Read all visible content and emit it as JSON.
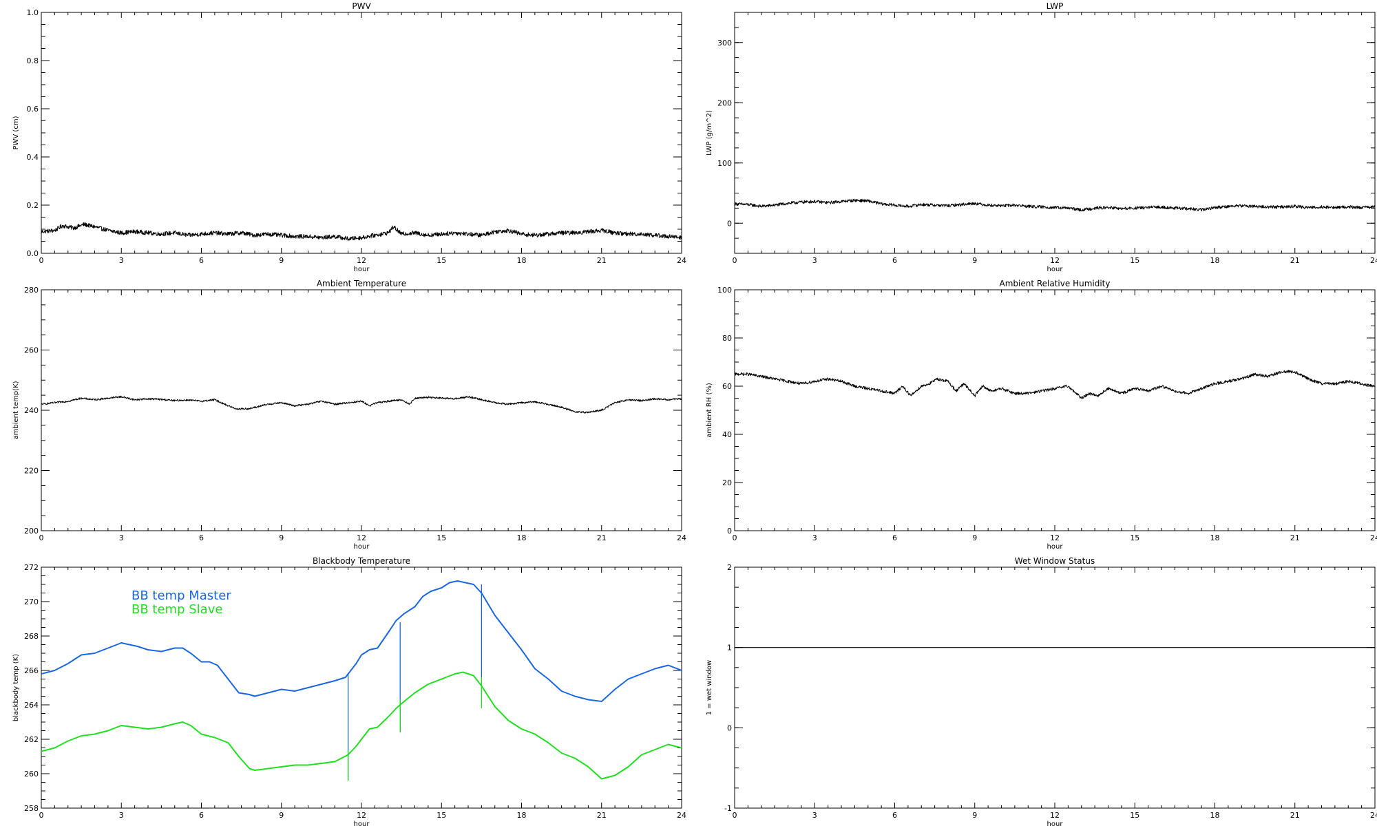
{
  "chart_data": [
    {
      "type": "line",
      "title": "PWV",
      "xlabel": "hour",
      "ylabel": "PWV (cm)",
      "xlim": [
        0,
        24
      ],
      "ylim": [
        0.0,
        1.0
      ],
      "xticks": [
        "0",
        "3",
        "6",
        "9",
        "12",
        "15",
        "18",
        "21",
        "24"
      ],
      "yticks": [
        "0.0",
        "0.2",
        "0.4",
        "0.6",
        "0.8",
        "1.0"
      ],
      "grid": false,
      "series": [
        {
          "color": "#000000",
          "style": "noisy",
          "noise": 0.009,
          "x": [
            0,
            0.5,
            0.8,
            1.2,
            1.6,
            2.0,
            2.5,
            3.0,
            3.5,
            4.0,
            4.5,
            5.0,
            5.5,
            6.0,
            6.5,
            7.0,
            7.5,
            8.0,
            8.5,
            9.0,
            9.5,
            10.0,
            10.5,
            11.0,
            11.5,
            12.0,
            12.5,
            13.0,
            13.2,
            13.5,
            14.0,
            14.5,
            15.0,
            15.5,
            16.0,
            16.5,
            17.0,
            17.5,
            18.0,
            18.5,
            19.0,
            19.5,
            20.0,
            20.5,
            21.0,
            21.5,
            22.0,
            22.5,
            23.0,
            23.5,
            24.0
          ],
          "y": [
            0.09,
            0.095,
            0.115,
            0.105,
            0.12,
            0.11,
            0.095,
            0.085,
            0.09,
            0.085,
            0.08,
            0.085,
            0.075,
            0.08,
            0.085,
            0.08,
            0.085,
            0.075,
            0.08,
            0.075,
            0.07,
            0.07,
            0.065,
            0.07,
            0.06,
            0.065,
            0.075,
            0.085,
            0.11,
            0.08,
            0.085,
            0.075,
            0.08,
            0.085,
            0.08,
            0.075,
            0.09,
            0.095,
            0.08,
            0.075,
            0.08,
            0.085,
            0.085,
            0.09,
            0.095,
            0.085,
            0.08,
            0.08,
            0.075,
            0.07,
            0.065
          ]
        }
      ]
    },
    {
      "type": "line",
      "title": "LWP",
      "xlabel": "hour",
      "ylabel": "LWP (g/m^2)",
      "xlim": [
        0,
        24
      ],
      "ylim": [
        -50,
        350
      ],
      "xticks": [
        "0",
        "3",
        "6",
        "9",
        "12",
        "15",
        "18",
        "21",
        "24"
      ],
      "yticks": [
        "0",
        "100",
        "200",
        "300"
      ],
      "grid": false,
      "series": [
        {
          "color": "#000000",
          "style": "noisy",
          "noise": 2.5,
          "x": [
            0,
            0.5,
            1.0,
            1.5,
            2.0,
            2.5,
            3.0,
            3.5,
            4.0,
            4.5,
            5.0,
            5.5,
            6.0,
            6.5,
            7.0,
            7.5,
            8.0,
            8.5,
            9.0,
            9.5,
            10.0,
            10.5,
            11.0,
            11.5,
            12.0,
            12.5,
            13.0,
            13.5,
            14.0,
            14.5,
            15.0,
            15.5,
            16.0,
            16.5,
            17.0,
            17.5,
            18.0,
            18.5,
            19.0,
            19.5,
            20.0,
            20.5,
            21.0,
            21.5,
            22.0,
            22.5,
            23.0,
            23.5,
            24.0
          ],
          "y": [
            32,
            31,
            28,
            30,
            33,
            35,
            36,
            34,
            36,
            38,
            37,
            32,
            30,
            28,
            31,
            30,
            29,
            31,
            33,
            30,
            29,
            30,
            28,
            27,
            26,
            25,
            22,
            25,
            26,
            24,
            25,
            26,
            27,
            25,
            24,
            22,
            26,
            28,
            29,
            28,
            27,
            27,
            28,
            26,
            27,
            26,
            27,
            26,
            27
          ]
        }
      ]
    },
    {
      "type": "line",
      "title": "Ambient Temperature",
      "xlabel": "hour",
      "ylabel": "ambient temp(K)",
      "xlim": [
        0,
        24
      ],
      "ylim": [
        200,
        280
      ],
      "xticks": [
        "0",
        "3",
        "6",
        "9",
        "12",
        "15",
        "18",
        "21",
        "24"
      ],
      "yticks": [
        "200",
        "220",
        "240",
        "260",
        "280"
      ],
      "grid": false,
      "series": [
        {
          "color": "#000000",
          "style": "noisy",
          "noise": 0.3,
          "x": [
            0,
            0.5,
            1.0,
            1.5,
            2.0,
            2.5,
            3.0,
            3.5,
            4.0,
            4.5,
            5.0,
            5.5,
            6.0,
            6.5,
            7.0,
            7.3,
            7.8,
            8.5,
            9.0,
            9.5,
            10.0,
            10.5,
            11.0,
            11.5,
            12.0,
            12.3,
            12.6,
            13.0,
            13.5,
            13.8,
            14.0,
            14.5,
            15.0,
            15.5,
            16.0,
            16.5,
            17.0,
            17.5,
            18.0,
            18.5,
            19.0,
            19.5,
            20.0,
            20.5,
            21.0,
            21.5,
            22.0,
            22.5,
            23.0,
            23.5,
            24.0
          ],
          "y": [
            242,
            242.5,
            243,
            244,
            243.5,
            244,
            244.5,
            243.5,
            243.8,
            243.6,
            243.2,
            243.4,
            243,
            243.5,
            241.5,
            240.5,
            240.5,
            242,
            242.5,
            241.5,
            242,
            243,
            242,
            242.5,
            243,
            241.5,
            242.5,
            243,
            243.5,
            242,
            244,
            244.3,
            244,
            243.8,
            244.5,
            243.5,
            242.5,
            242,
            242.5,
            242.8,
            242,
            241,
            239.5,
            239.3,
            240,
            242.5,
            243.5,
            243.2,
            243.8,
            243.5,
            243.8
          ]
        }
      ]
    },
    {
      "type": "line",
      "title": "Ambient Relative Humidity",
      "xlabel": "hour",
      "ylabel": "ambient RH (%)",
      "xlim": [
        0,
        24
      ],
      "ylim": [
        0,
        100
      ],
      "xticks": [
        "0",
        "3",
        "6",
        "9",
        "12",
        "15",
        "18",
        "21",
        "24"
      ],
      "yticks": [
        "0",
        "20",
        "40",
        "60",
        "80",
        "100"
      ],
      "grid": false,
      "series": [
        {
          "color": "#000000",
          "style": "noisy",
          "noise": 0.6,
          "x": [
            0,
            0.5,
            1.0,
            1.5,
            2.0,
            2.5,
            3.0,
            3.5,
            4.0,
            4.5,
            5.0,
            5.5,
            6.0,
            6.3,
            6.6,
            7.0,
            7.3,
            7.6,
            8.0,
            8.3,
            8.6,
            9.0,
            9.3,
            9.6,
            10.0,
            10.5,
            11.0,
            11.5,
            12.0,
            12.5,
            13.0,
            13.3,
            13.6,
            14.0,
            14.5,
            15.0,
            15.5,
            16.0,
            16.5,
            17.0,
            17.5,
            18.0,
            18.5,
            19.0,
            19.5,
            20.0,
            20.5,
            21.0,
            21.5,
            22.0,
            22.5,
            23.0,
            23.5,
            24.0
          ],
          "y": [
            65,
            65,
            64,
            63,
            62,
            61,
            62,
            63,
            62,
            60,
            59,
            58,
            57,
            60,
            56,
            60,
            61,
            63,
            62,
            58,
            61,
            56,
            60,
            58,
            59,
            57,
            57,
            58,
            59,
            60,
            55,
            57,
            56,
            59,
            57,
            59,
            58,
            60,
            58,
            57,
            59,
            61,
            62,
            63,
            65,
            64,
            66,
            66,
            63,
            61,
            61,
            62,
            61,
            60
          ]
        }
      ]
    },
    {
      "type": "line",
      "title": "Blackbody Temperature",
      "xlabel": "hour",
      "ylabel": "blackbody temp (K)",
      "xlim": [
        0,
        24
      ],
      "ylim": [
        258,
        272
      ],
      "xticks": [
        "0",
        "3",
        "6",
        "9",
        "12",
        "15",
        "18",
        "21",
        "24"
      ],
      "yticks": [
        "258",
        "260",
        "262",
        "264",
        "266",
        "268",
        "270",
        "272"
      ],
      "grid": false,
      "legend_position": "top-left",
      "series": [
        {
          "name": "BB temp Master",
          "color": "#1a66e0",
          "style": "smooth",
          "x": [
            0,
            0.5,
            1.0,
            1.5,
            2.0,
            2.5,
            3.0,
            3.3,
            3.6,
            4.0,
            4.5,
            5.0,
            5.3,
            5.6,
            6.0,
            6.3,
            6.6,
            7.0,
            7.4,
            7.8,
            8.0,
            8.5,
            9.0,
            9.5,
            10.0,
            10.5,
            11.0,
            11.4,
            11.8,
            12.0,
            12.3,
            12.6,
            13.0,
            13.3,
            13.6,
            14.0,
            14.3,
            14.6,
            15.0,
            15.3,
            15.6,
            15.9,
            16.2,
            16.5,
            17.0,
            17.5,
            18.0,
            18.5,
            19.0,
            19.5,
            20.0,
            20.5,
            21.0,
            21.5,
            22.0,
            22.5,
            23.0,
            23.5,
            24.0
          ],
          "y": [
            265.8,
            266.0,
            266.4,
            266.9,
            267.0,
            267.3,
            267.6,
            267.5,
            267.4,
            267.2,
            267.1,
            267.3,
            267.3,
            267.0,
            266.5,
            266.5,
            266.3,
            265.5,
            264.7,
            264.6,
            264.5,
            264.7,
            264.9,
            264.8,
            265.0,
            265.2,
            265.4,
            265.6,
            266.4,
            266.9,
            267.2,
            267.3,
            268.2,
            268.9,
            269.3,
            269.7,
            270.3,
            270.6,
            270.8,
            271.1,
            271.2,
            271.1,
            271.0,
            270.5,
            269.2,
            268.2,
            267.2,
            266.1,
            265.5,
            264.8,
            264.5,
            264.3,
            264.2,
            264.9,
            265.5,
            265.8,
            266.1,
            266.3,
            266.0
          ]
        },
        {
          "name": "BB temp Slave",
          "color": "#22dd22",
          "style": "smooth",
          "x": [
            0,
            0.5,
            1.0,
            1.5,
            2.0,
            2.5,
            3.0,
            3.5,
            4.0,
            4.5,
            5.0,
            5.3,
            5.6,
            6.0,
            6.5,
            7.0,
            7.4,
            7.8,
            8.0,
            8.5,
            9.0,
            9.5,
            10.0,
            10.5,
            11.0,
            11.5,
            11.8,
            12.0,
            12.3,
            12.6,
            13.0,
            13.3,
            13.6,
            14.0,
            14.5,
            15.0,
            15.5,
            15.8,
            16.2,
            16.5,
            17.0,
            17.5,
            18.0,
            18.5,
            19.0,
            19.5,
            20.0,
            20.5,
            21.0,
            21.5,
            22.0,
            22.5,
            23.0,
            23.5,
            24.0
          ],
          "y": [
            261.3,
            261.5,
            261.9,
            262.2,
            262.3,
            262.5,
            262.8,
            262.7,
            262.6,
            262.7,
            262.9,
            263.0,
            262.8,
            262.3,
            262.1,
            261.8,
            261.0,
            260.3,
            260.2,
            260.3,
            260.4,
            260.5,
            260.5,
            260.6,
            260.7,
            261.1,
            261.6,
            262.0,
            262.6,
            262.7,
            263.3,
            263.8,
            264.2,
            264.7,
            265.2,
            265.5,
            265.8,
            265.9,
            265.7,
            265.1,
            263.9,
            263.1,
            262.6,
            262.3,
            261.8,
            261.2,
            260.9,
            260.4,
            259.7,
            259.9,
            260.4,
            261.1,
            261.4,
            261.7,
            261.5
          ]
        }
      ],
      "spikes": [
        {
          "x": 11.5,
          "y_top": 265.8,
          "y_bottom": 259.6,
          "color": "#1a66e0"
        },
        {
          "x": 11.5,
          "y_top": 261.4,
          "y_bottom": 259.6,
          "color": "#22dd22"
        },
        {
          "x": 13.45,
          "y_top": 268.8,
          "y_bottom": 262.4,
          "color": "#1a66e0"
        },
        {
          "x": 13.45,
          "y_top": 264.3,
          "y_bottom": 262.4,
          "color": "#22dd22"
        },
        {
          "x": 16.5,
          "y_top": 271.0,
          "y_bottom": 265.6,
          "color": "#1a66e0"
        },
        {
          "x": 16.5,
          "y_top": 265.6,
          "y_bottom": 263.8,
          "color": "#22dd22"
        }
      ]
    },
    {
      "type": "line",
      "title": "Wet Window Status",
      "xlabel": "hour",
      "ylabel": "1 = wet window",
      "xlim": [
        0,
        24
      ],
      "ylim": [
        -1,
        2
      ],
      "xticks": [
        "0",
        "3",
        "6",
        "9",
        "12",
        "15",
        "18",
        "21",
        "24"
      ],
      "yticks": [
        "-1",
        "0",
        "1",
        "2"
      ],
      "grid": false,
      "series": [
        {
          "color": "#000000",
          "style": "flat",
          "x": [
            0,
            24
          ],
          "y": [
            1,
            1
          ]
        }
      ]
    }
  ]
}
